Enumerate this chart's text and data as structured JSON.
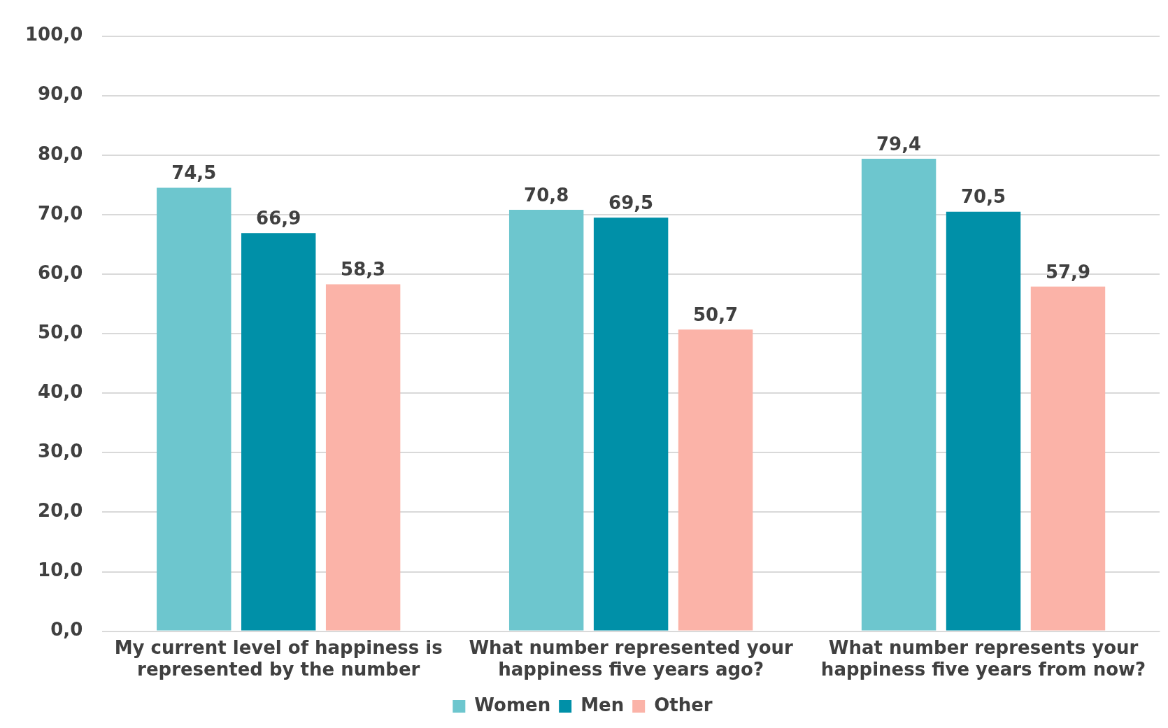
{
  "chart_data": {
    "type": "bar",
    "categories": [
      "My current level of happiness is represented by the number",
      "What number represented your happiness five years ago?",
      "What number represents your happiness five years from now?"
    ],
    "series": [
      {
        "name": "Women",
        "color": "#6dc6ce",
        "values": [
          74.5,
          70.8,
          79.4
        ],
        "value_labels": [
          "74,5",
          "70,8",
          "79,4"
        ]
      },
      {
        "name": "Men",
        "color": "#0090a8",
        "values": [
          66.9,
          69.5,
          70.5
        ],
        "value_labels": [
          "66,9",
          "69,5",
          "70,5"
        ]
      },
      {
        "name": "Other",
        "color": "#fbb3a8",
        "values": [
          58.3,
          50.7,
          57.9
        ],
        "value_labels": [
          "58,3",
          "50,7",
          "57,9"
        ]
      }
    ],
    "ylim": [
      0,
      100
    ],
    "yticks": [
      {
        "value": 0,
        "label": "0,0"
      },
      {
        "value": 10,
        "label": "10,0"
      },
      {
        "value": 20,
        "label": "20,0"
      },
      {
        "value": 30,
        "label": "30,0"
      },
      {
        "value": 40,
        "label": "40,0"
      },
      {
        "value": 50,
        "label": "50,0"
      },
      {
        "value": 60,
        "label": "60,0"
      },
      {
        "value": 70,
        "label": "70,0"
      },
      {
        "value": 80,
        "label": "80,0"
      },
      {
        "value": 90,
        "label": "90,0"
      },
      {
        "value": 100,
        "label": "100,0"
      }
    ],
    "grid": "y",
    "legend": "bottom"
  }
}
